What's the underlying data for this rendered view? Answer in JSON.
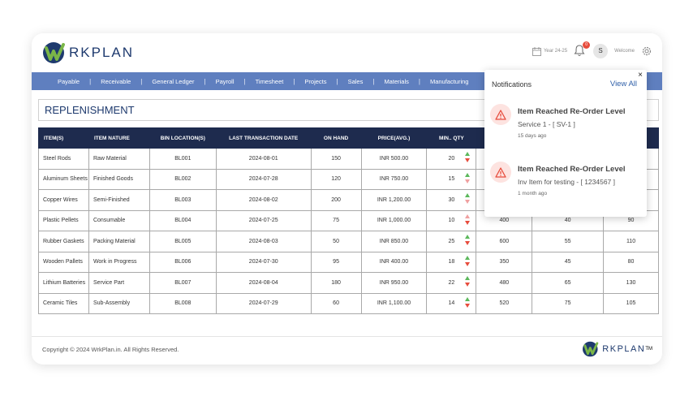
{
  "brand": {
    "logo_text": "RKPLAN",
    "tm": "TM"
  },
  "header": {
    "year": "Year 24-25",
    "notification_count": "0",
    "avatar_initial": "S",
    "welcome": "Welcome"
  },
  "nav": [
    "Payable",
    "Receivable",
    "General Ledger",
    "Payroll",
    "Timesheet",
    "Projects",
    "Sales",
    "Materials",
    "Manufacturing"
  ],
  "page": {
    "title": "REPLENISHMENT"
  },
  "table": {
    "columns": [
      "ITEM(S)",
      "ITEM NATURE",
      "BIN LOCATION(S)",
      "LAST TRANSACTION DATE",
      "ON HAND",
      "PRICE(AVG.)",
      "MIN.. QTY",
      "",
      "",
      ""
    ],
    "rows": [
      [
        "Steel Rods",
        "Raw Material",
        "BL001",
        "2024-08-01",
        "150",
        "INR 500.00",
        "20",
        "",
        "",
        ""
      ],
      [
        "Aluminum Sheets",
        "Finished Goods",
        "BL002",
        "2024-07-28",
        "120",
        "INR 750.00",
        "15",
        "",
        "",
        ""
      ],
      [
        "Copper Wires",
        "Semi-Finished",
        "BL003",
        "2024-08-02",
        "200",
        "INR 1,200.00",
        "30",
        "",
        "",
        ""
      ],
      [
        "Plastic Pellets",
        "Consumable",
        "BL004",
        "2024-07-25",
        "75",
        "INR 1,000.00",
        "10",
        "400",
        "40",
        "90"
      ],
      [
        "Rubber Gaskets",
        "Packing Material",
        "BL005",
        "2024-08-03",
        "50",
        "INR 850.00",
        "25",
        "600",
        "55",
        "110"
      ],
      [
        "Wooden Pallets",
        "Work in Progress",
        "BL006",
        "2024-07-30",
        "95",
        "INR 400.00",
        "18",
        "350",
        "45",
        "80"
      ],
      [
        "Lithium Batteries",
        "Service Part",
        "BL007",
        "2024-08-04",
        "180",
        "INR 950.00",
        "22",
        "480",
        "65",
        "130"
      ],
      [
        "Ceramic Tiles",
        "Sub-Assembly",
        "BL008",
        "2024-07-29",
        "60",
        "INR 1,100.00",
        "14",
        "520",
        "75",
        "105"
      ]
    ]
  },
  "notifications": {
    "close": "×",
    "title": "Notifications",
    "view_all": "View All",
    "items": [
      {
        "heading": "Item Reached Re-Order Level",
        "body": "Service 1 - [ SV-1 ]",
        "time": "15 days ago"
      },
      {
        "heading": "Item Reached Re-Order Level",
        "body": "Inv Item for testing - [ 1234567 ]",
        "time": "1 month ago"
      }
    ]
  },
  "footer": {
    "copyright": "Copyright © 2024 WrkPlan.in. All Rights Reserved."
  },
  "colors": {
    "nav": "#5f7fbf",
    "table_header": "#1e2b4e",
    "brand_blue": "#1e3a6e",
    "brand_green": "#7ab648",
    "alert": "#e74c3c"
  }
}
